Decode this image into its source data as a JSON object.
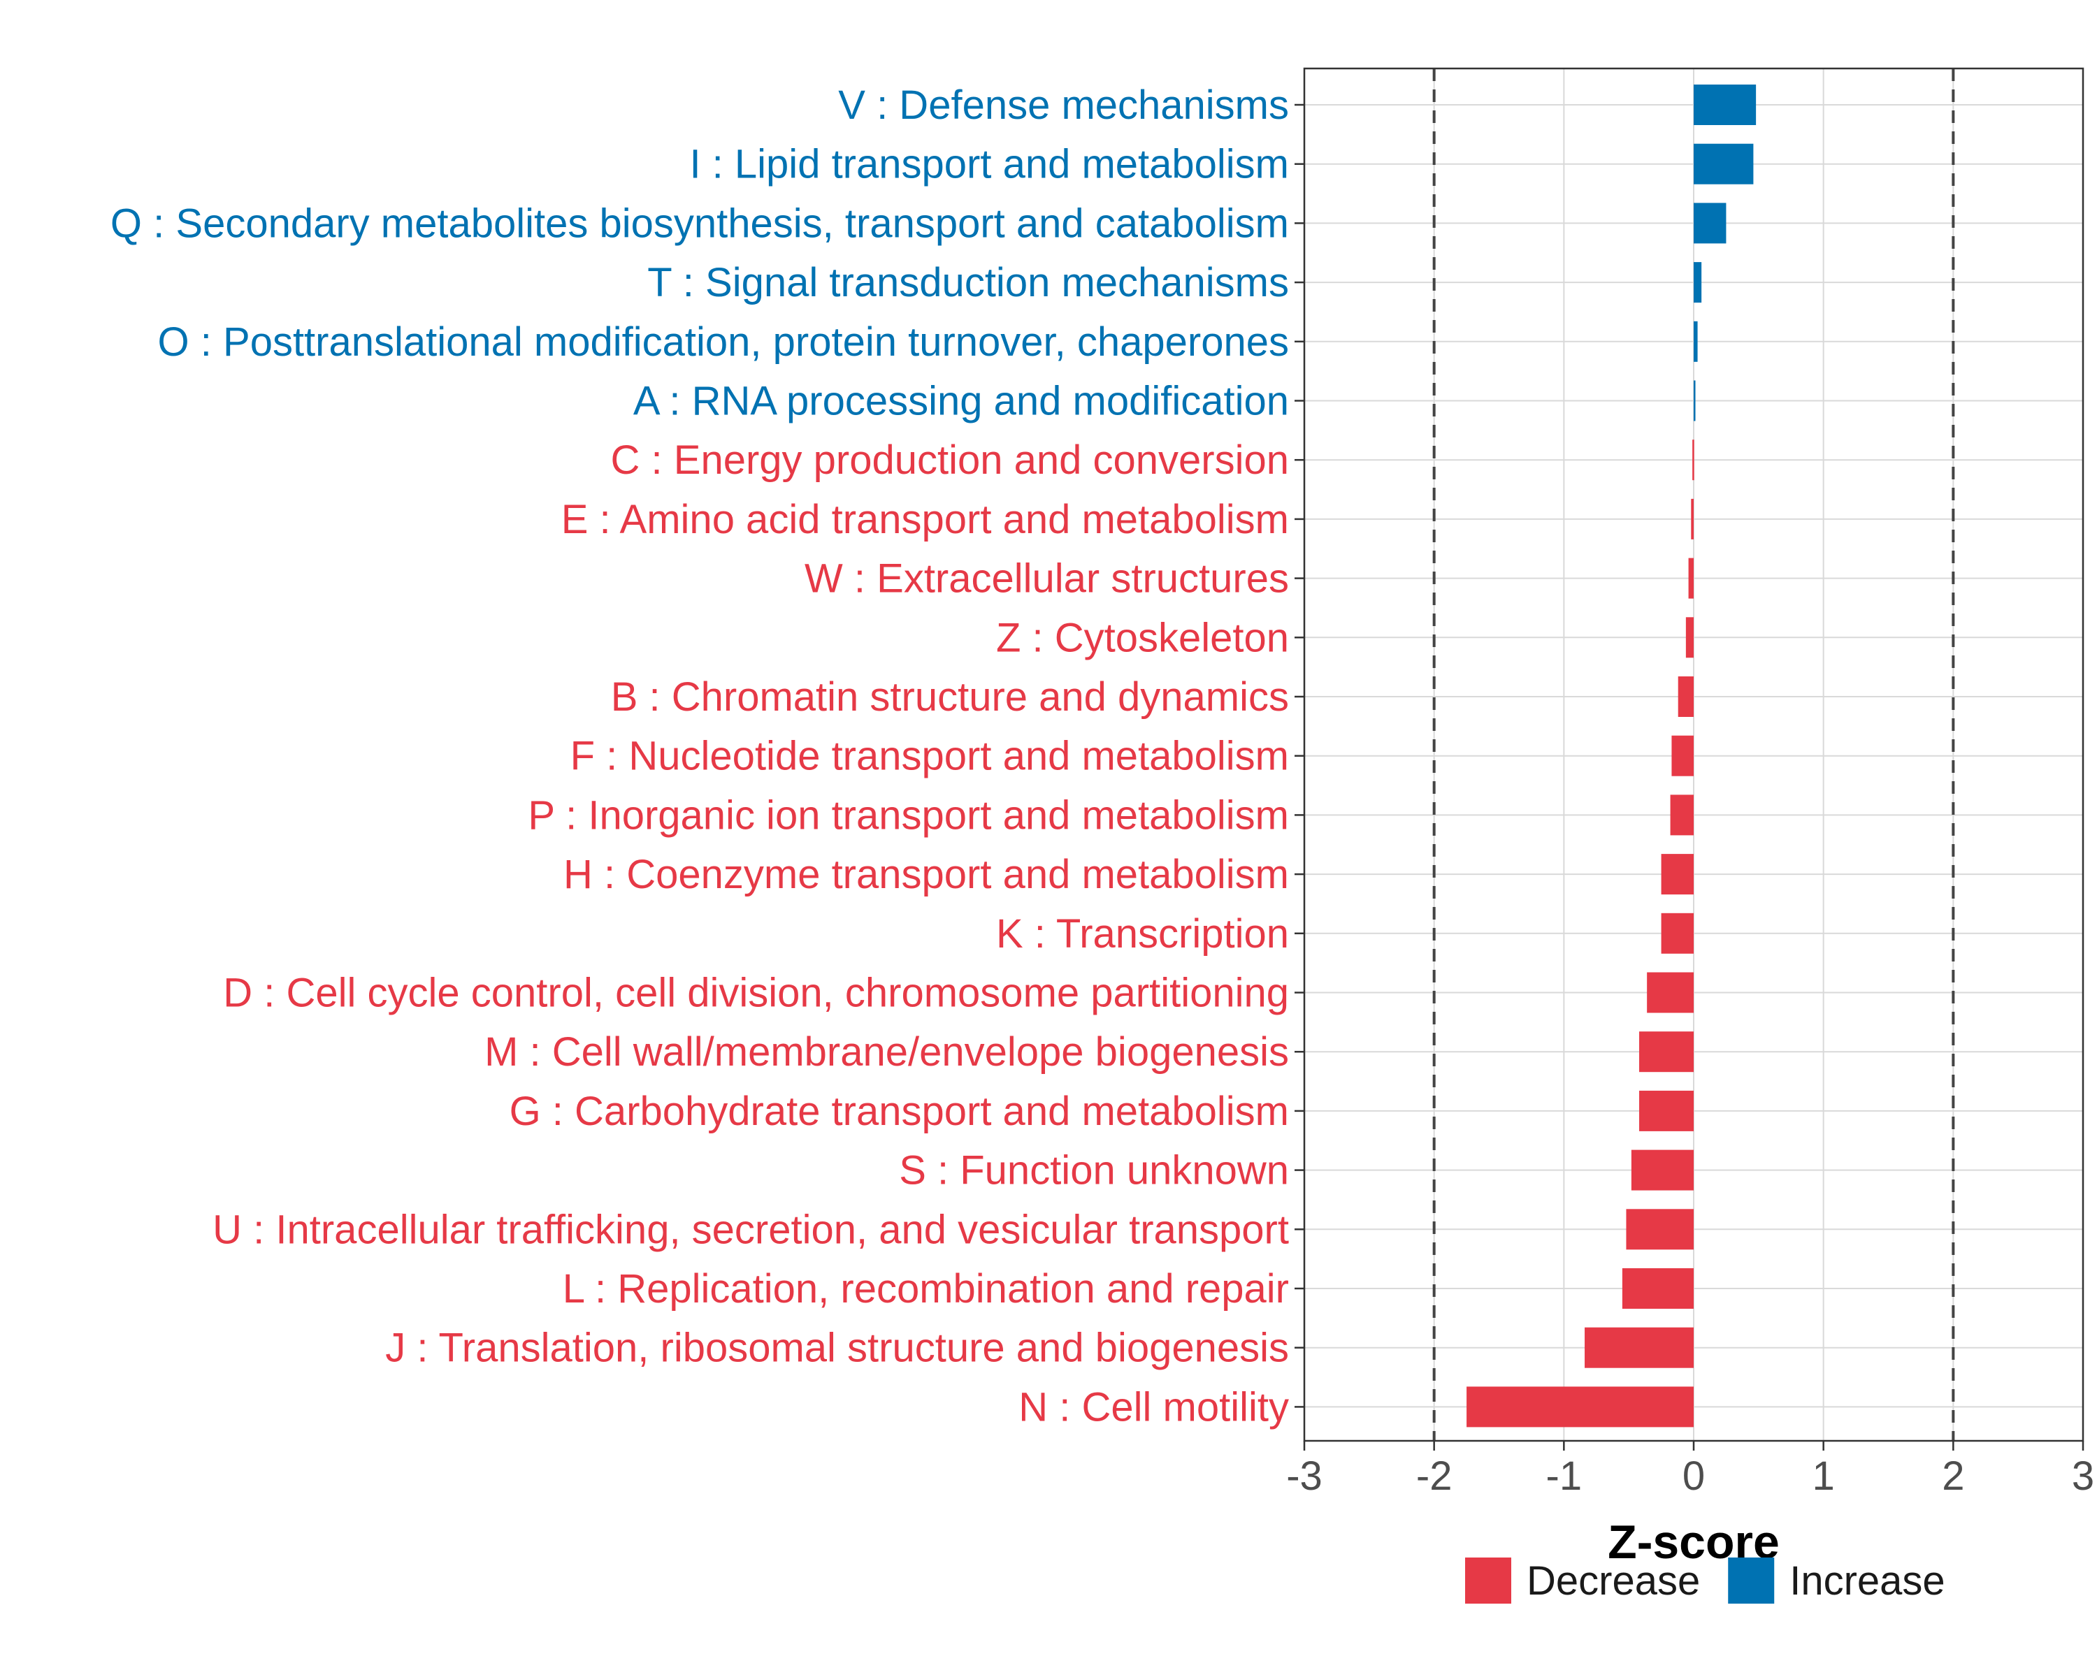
{
  "chart_data": {
    "type": "bar",
    "orientation": "horizontal",
    "title": "",
    "xlabel": "Z-score",
    "ylabel": "",
    "xlim": [
      -3,
      3
    ],
    "x_ticks": [
      -3,
      -2,
      -1,
      0,
      1,
      2,
      3
    ],
    "x_tick_labels": [
      "-3",
      "-2",
      "-1",
      "0",
      "1",
      "2",
      "3"
    ],
    "reference_lines": [
      -2,
      2
    ],
    "grid": true,
    "legend_position": "bottom",
    "colors": {
      "Decrease": "#E63946",
      "Increase": "#0072B2"
    },
    "legend": [
      {
        "name": "Decrease",
        "color": "#E63946"
      },
      {
        "name": "Increase",
        "color": "#0072B2"
      }
    ],
    "categories": [
      "V : Defense mechanisms",
      "I : Lipid transport and metabolism",
      "Q : Secondary metabolites biosynthesis, transport and catabolism",
      "T : Signal transduction mechanisms",
      "O : Posttranslational modification, protein turnover, chaperones",
      "A : RNA processing and modification",
      "C : Energy production and conversion",
      "E : Amino acid transport and metabolism",
      "W : Extracellular structures",
      "Z : Cytoskeleton",
      "B : Chromatin structure and dynamics",
      "F : Nucleotide transport and metabolism",
      "P : Inorganic ion transport and metabolism",
      "H : Coenzyme transport and metabolism",
      "K : Transcription",
      "D : Cell cycle control, cell division, chromosome partitioning",
      "M : Cell wall/membrane/envelope biogenesis",
      "G : Carbohydrate transport and metabolism",
      "S : Function unknown",
      "U : Intracellular trafficking, secretion, and vesicular transport",
      "L : Replication, recombination and repair",
      "J : Translation, ribosomal structure and biogenesis",
      "N : Cell motility"
    ],
    "values": [
      0.48,
      0.46,
      0.25,
      0.06,
      0.03,
      0.01,
      -0.01,
      -0.02,
      -0.04,
      -0.06,
      -0.12,
      -0.17,
      -0.18,
      -0.25,
      -0.25,
      -0.36,
      -0.42,
      -0.42,
      -0.48,
      -0.52,
      -0.55,
      -0.84,
      -1.75
    ],
    "direction": [
      "Increase",
      "Increase",
      "Increase",
      "Increase",
      "Increase",
      "Increase",
      "Decrease",
      "Decrease",
      "Decrease",
      "Decrease",
      "Decrease",
      "Decrease",
      "Decrease",
      "Decrease",
      "Decrease",
      "Decrease",
      "Decrease",
      "Decrease",
      "Decrease",
      "Decrease",
      "Decrease",
      "Decrease",
      "Decrease"
    ]
  }
}
